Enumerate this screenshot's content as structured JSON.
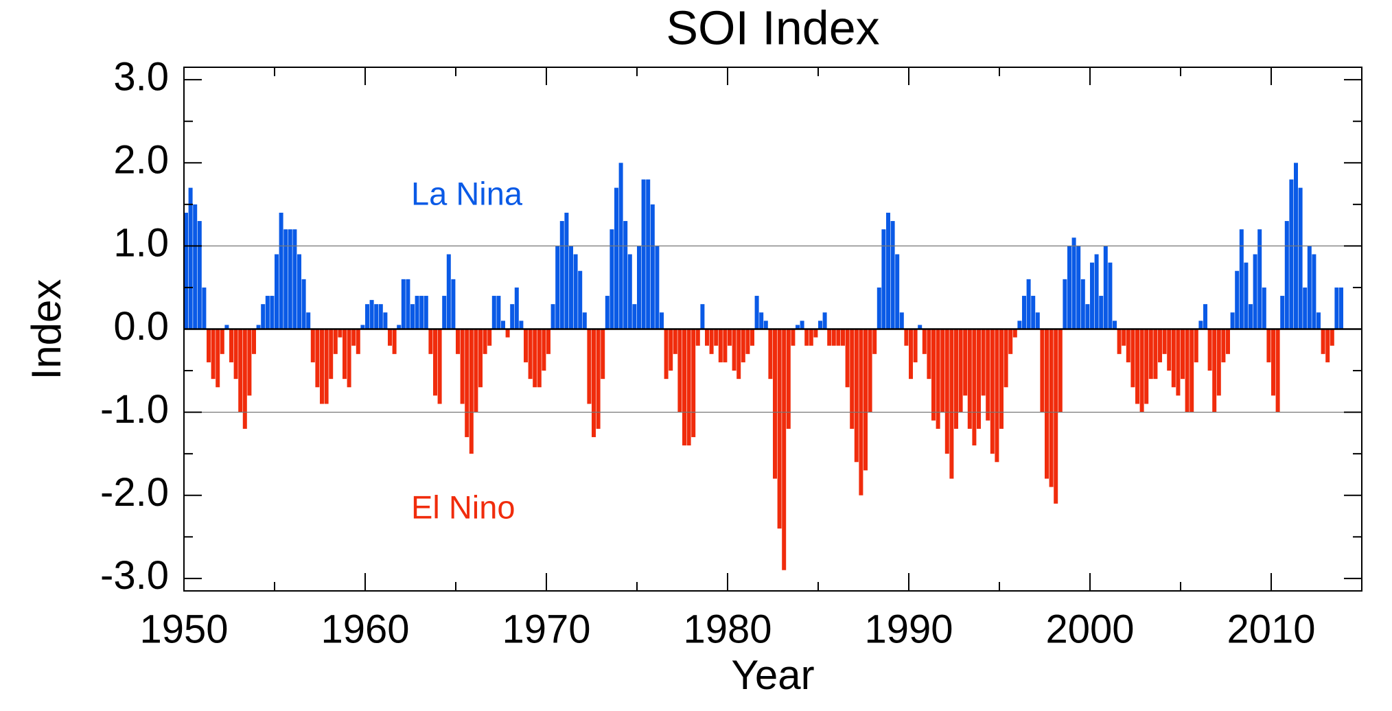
{
  "chart_data": {
    "type": "bar",
    "title": "SOI Index",
    "x_label": "Year",
    "y_label": "Index",
    "positive_color": "#0a5ae6",
    "negative_color": "#f02c0c",
    "annotations": [
      {
        "text": "La Nina",
        "color": "#0a5ae6"
      },
      {
        "text": "El Nino",
        "color": "#f02c0c"
      }
    ],
    "xlim": [
      1950,
      2015
    ],
    "xticks": [
      1950,
      1960,
      1970,
      1980,
      1990,
      2000,
      2010
    ],
    "xticks_minor": [
      1955,
      1965,
      1975,
      1985,
      1995,
      2005,
      2015
    ],
    "ylim": [
      -3.15,
      3.15
    ],
    "yticks": [
      {
        "value": -3,
        "label": "-3.0"
      },
      {
        "value": -2,
        "label": "-2.0"
      },
      {
        "value": -1,
        "label": "-1.0"
      },
      {
        "value": 0,
        "label": "0.0"
      },
      {
        "value": 1,
        "label": "1.0"
      },
      {
        "value": 2,
        "label": "2.0"
      },
      {
        "value": 3,
        "label": "3.0"
      }
    ],
    "yticks_minor": [
      -2.5,
      -1.5,
      -0.5,
      0.5,
      1.5,
      2.5
    ],
    "grid_lines": [
      -1,
      0,
      1
    ],
    "bar_width": 0.25,
    "x": [
      1950,
      1950.25,
      1950.5,
      1950.75,
      1951,
      1951.25,
      1951.5,
      1951.75,
      1952,
      1952.25,
      1952.5,
      1952.75,
      1953,
      1953.25,
      1953.5,
      1953.75,
      1954,
      1954.25,
      1954.5,
      1954.75,
      1955,
      1955.25,
      1955.5,
      1955.75,
      1956,
      1956.25,
      1956.5,
      1956.75,
      1957,
      1957.25,
      1957.5,
      1957.75,
      1958,
      1958.25,
      1958.5,
      1958.75,
      1959,
      1959.25,
      1959.5,
      1959.75,
      1960,
      1960.25,
      1960.5,
      1960.75,
      1961,
      1961.25,
      1961.5,
      1961.75,
      1962,
      1962.25,
      1962.5,
      1962.75,
      1963,
      1963.25,
      1963.5,
      1963.75,
      1964,
      1964.25,
      1964.5,
      1964.75,
      1965,
      1965.25,
      1965.5,
      1965.75,
      1966,
      1966.25,
      1966.5,
      1966.75,
      1967,
      1967.25,
      1967.5,
      1967.75,
      1968,
      1968.25,
      1968.5,
      1968.75,
      1969,
      1969.25,
      1969.5,
      1969.75,
      1970,
      1970.25,
      1970.5,
      1970.75,
      1971,
      1971.25,
      1971.5,
      1971.75,
      1972,
      1972.25,
      1972.5,
      1972.75,
      1973,
      1973.25,
      1973.5,
      1973.75,
      1974,
      1974.25,
      1974.5,
      1974.75,
      1975,
      1975.25,
      1975.5,
      1975.75,
      1976,
      1976.25,
      1976.5,
      1976.75,
      1977,
      1977.25,
      1977.5,
      1977.75,
      1978,
      1978.25,
      1978.5,
      1978.75,
      1979,
      1979.25,
      1979.5,
      1979.75,
      1980,
      1980.25,
      1980.5,
      1980.75,
      1981,
      1981.25,
      1981.5,
      1981.75,
      1982,
      1982.25,
      1982.5,
      1982.75,
      1983,
      1983.25,
      1983.5,
      1983.75,
      1984,
      1984.25,
      1984.5,
      1984.75,
      1985,
      1985.25,
      1985.5,
      1985.75,
      1986,
      1986.25,
      1986.5,
      1986.75,
      1987,
      1987.25,
      1987.5,
      1987.75,
      1988,
      1988.25,
      1988.5,
      1988.75,
      1989,
      1989.25,
      1989.5,
      1989.75,
      1990,
      1990.25,
      1990.5,
      1990.75,
      1991,
      1991.25,
      1991.5,
      1991.75,
      1992,
      1992.25,
      1992.5,
      1992.75,
      1993,
      1993.25,
      1993.5,
      1993.75,
      1994,
      1994.25,
      1994.5,
      1994.75,
      1995,
      1995.25,
      1995.5,
      1995.75,
      1996,
      1996.25,
      1996.5,
      1996.75,
      1997,
      1997.25,
      1997.5,
      1997.75,
      1998,
      1998.25,
      1998.5,
      1998.75,
      1999,
      1999.25,
      1999.5,
      1999.75,
      2000,
      2000.25,
      2000.5,
      2000.75,
      2001,
      2001.25,
      2001.5,
      2001.75,
      2002,
      2002.25,
      2002.5,
      2002.75,
      2003,
      2003.25,
      2003.5,
      2003.75,
      2004,
      2004.25,
      2004.5,
      2004.75,
      2005,
      2005.25,
      2005.5,
      2005.75,
      2006,
      2006.25,
      2006.5,
      2006.75,
      2007,
      2007.25,
      2007.5,
      2007.75,
      2008,
      2008.25,
      2008.5,
      2008.75,
      2009,
      2009.25,
      2009.5,
      2009.75,
      2010,
      2010.25,
      2010.5,
      2010.75,
      2011,
      2011.25,
      2011.5,
      2011.75,
      2012,
      2012.25,
      2012.5,
      2012.75,
      2013,
      2013.25,
      2013.5,
      2013.75
    ],
    "values": [
      1.4,
      1.7,
      1.5,
      1.3,
      0.5,
      -0.4,
      -0.6,
      -0.7,
      -0.3,
      0.05,
      -0.4,
      -0.6,
      -1.0,
      -1.2,
      -0.8,
      -0.3,
      0.05,
      0.3,
      0.4,
      0.4,
      0.9,
      1.4,
      1.2,
      1.2,
      1.2,
      0.9,
      0.6,
      0.2,
      -0.4,
      -0.7,
      -0.9,
      -0.9,
      -0.6,
      -0.3,
      -0.1,
      -0.6,
      -0.7,
      -0.2,
      -0.3,
      0.05,
      0.3,
      0.35,
      0.3,
      0.3,
      0.2,
      -0.2,
      -0.3,
      0.05,
      0.6,
      0.6,
      0.3,
      0.4,
      0.4,
      0.4,
      -0.3,
      -0.8,
      -0.9,
      0.4,
      0.9,
      0.6,
      -0.3,
      -0.9,
      -1.3,
      -1.5,
      -1.0,
      -0.7,
      -0.3,
      -0.2,
      0.4,
      0.4,
      0.1,
      -0.1,
      0.3,
      0.5,
      0.1,
      -0.4,
      -0.6,
      -0.7,
      -0.7,
      -0.5,
      -0.3,
      0.3,
      1.0,
      1.3,
      1.4,
      1.0,
      0.9,
      0.7,
      0.2,
      -0.9,
      -1.3,
      -1.2,
      -0.6,
      0.4,
      1.2,
      1.7,
      2.0,
      1.3,
      0.9,
      0.3,
      1.0,
      1.8,
      1.8,
      1.5,
      1.0,
      0.2,
      -0.6,
      -0.5,
      -0.3,
      -1.0,
      -1.4,
      -1.4,
      -1.3,
      -0.2,
      0.3,
      -0.2,
      -0.3,
      -0.2,
      -0.4,
      -0.4,
      -0.2,
      -0.5,
      -0.6,
      -0.4,
      -0.3,
      -0.2,
      0.4,
      0.2,
      0.1,
      -0.6,
      -1.8,
      -2.4,
      -2.9,
      -1.2,
      -0.2,
      0.05,
      0.1,
      -0.2,
      -0.2,
      -0.1,
      0.1,
      0.2,
      -0.2,
      -0.2,
      -0.2,
      -0.2,
      -0.7,
      -1.2,
      -1.6,
      -2.0,
      -1.7,
      -1.0,
      -0.3,
      0.5,
      1.2,
      1.4,
      1.3,
      0.9,
      0.2,
      -0.2,
      -0.6,
      -0.4,
      0.05,
      -0.3,
      -0.6,
      -1.1,
      -1.2,
      -1.0,
      -1.5,
      -1.8,
      -1.2,
      -1.0,
      -0.8,
      -1.2,
      -1.4,
      -1.2,
      -0.8,
      -1.1,
      -1.5,
      -1.6,
      -1.2,
      -0.7,
      -0.3,
      -0.1,
      0.1,
      0.4,
      0.6,
      0.4,
      0.2,
      -1.0,
      -1.8,
      -1.9,
      -2.1,
      -1.0,
      0.6,
      1.0,
      1.1,
      1.0,
      0.6,
      0.3,
      0.8,
      0.9,
      0.4,
      1.0,
      0.8,
      0.1,
      -0.3,
      -0.2,
      -0.4,
      -0.7,
      -0.9,
      -1.0,
      -0.9,
      -0.6,
      -0.6,
      -0.4,
      -0.3,
      -0.5,
      -0.7,
      -0.8,
      -0.6,
      -1.0,
      -1.0,
      -0.4,
      0.1,
      0.3,
      -0.5,
      -1.0,
      -0.8,
      -0.4,
      -0.3,
      0.2,
      0.7,
      1.2,
      0.8,
      0.3,
      0.9,
      1.2,
      0.5,
      -0.4,
      -0.8,
      -1.0,
      0.4,
      1.3,
      1.8,
      2.0,
      1.7,
      0.5,
      1.0,
      0.9,
      0.2,
      -0.3,
      -0.4,
      -0.2,
      0.5,
      0.5
    ]
  }
}
